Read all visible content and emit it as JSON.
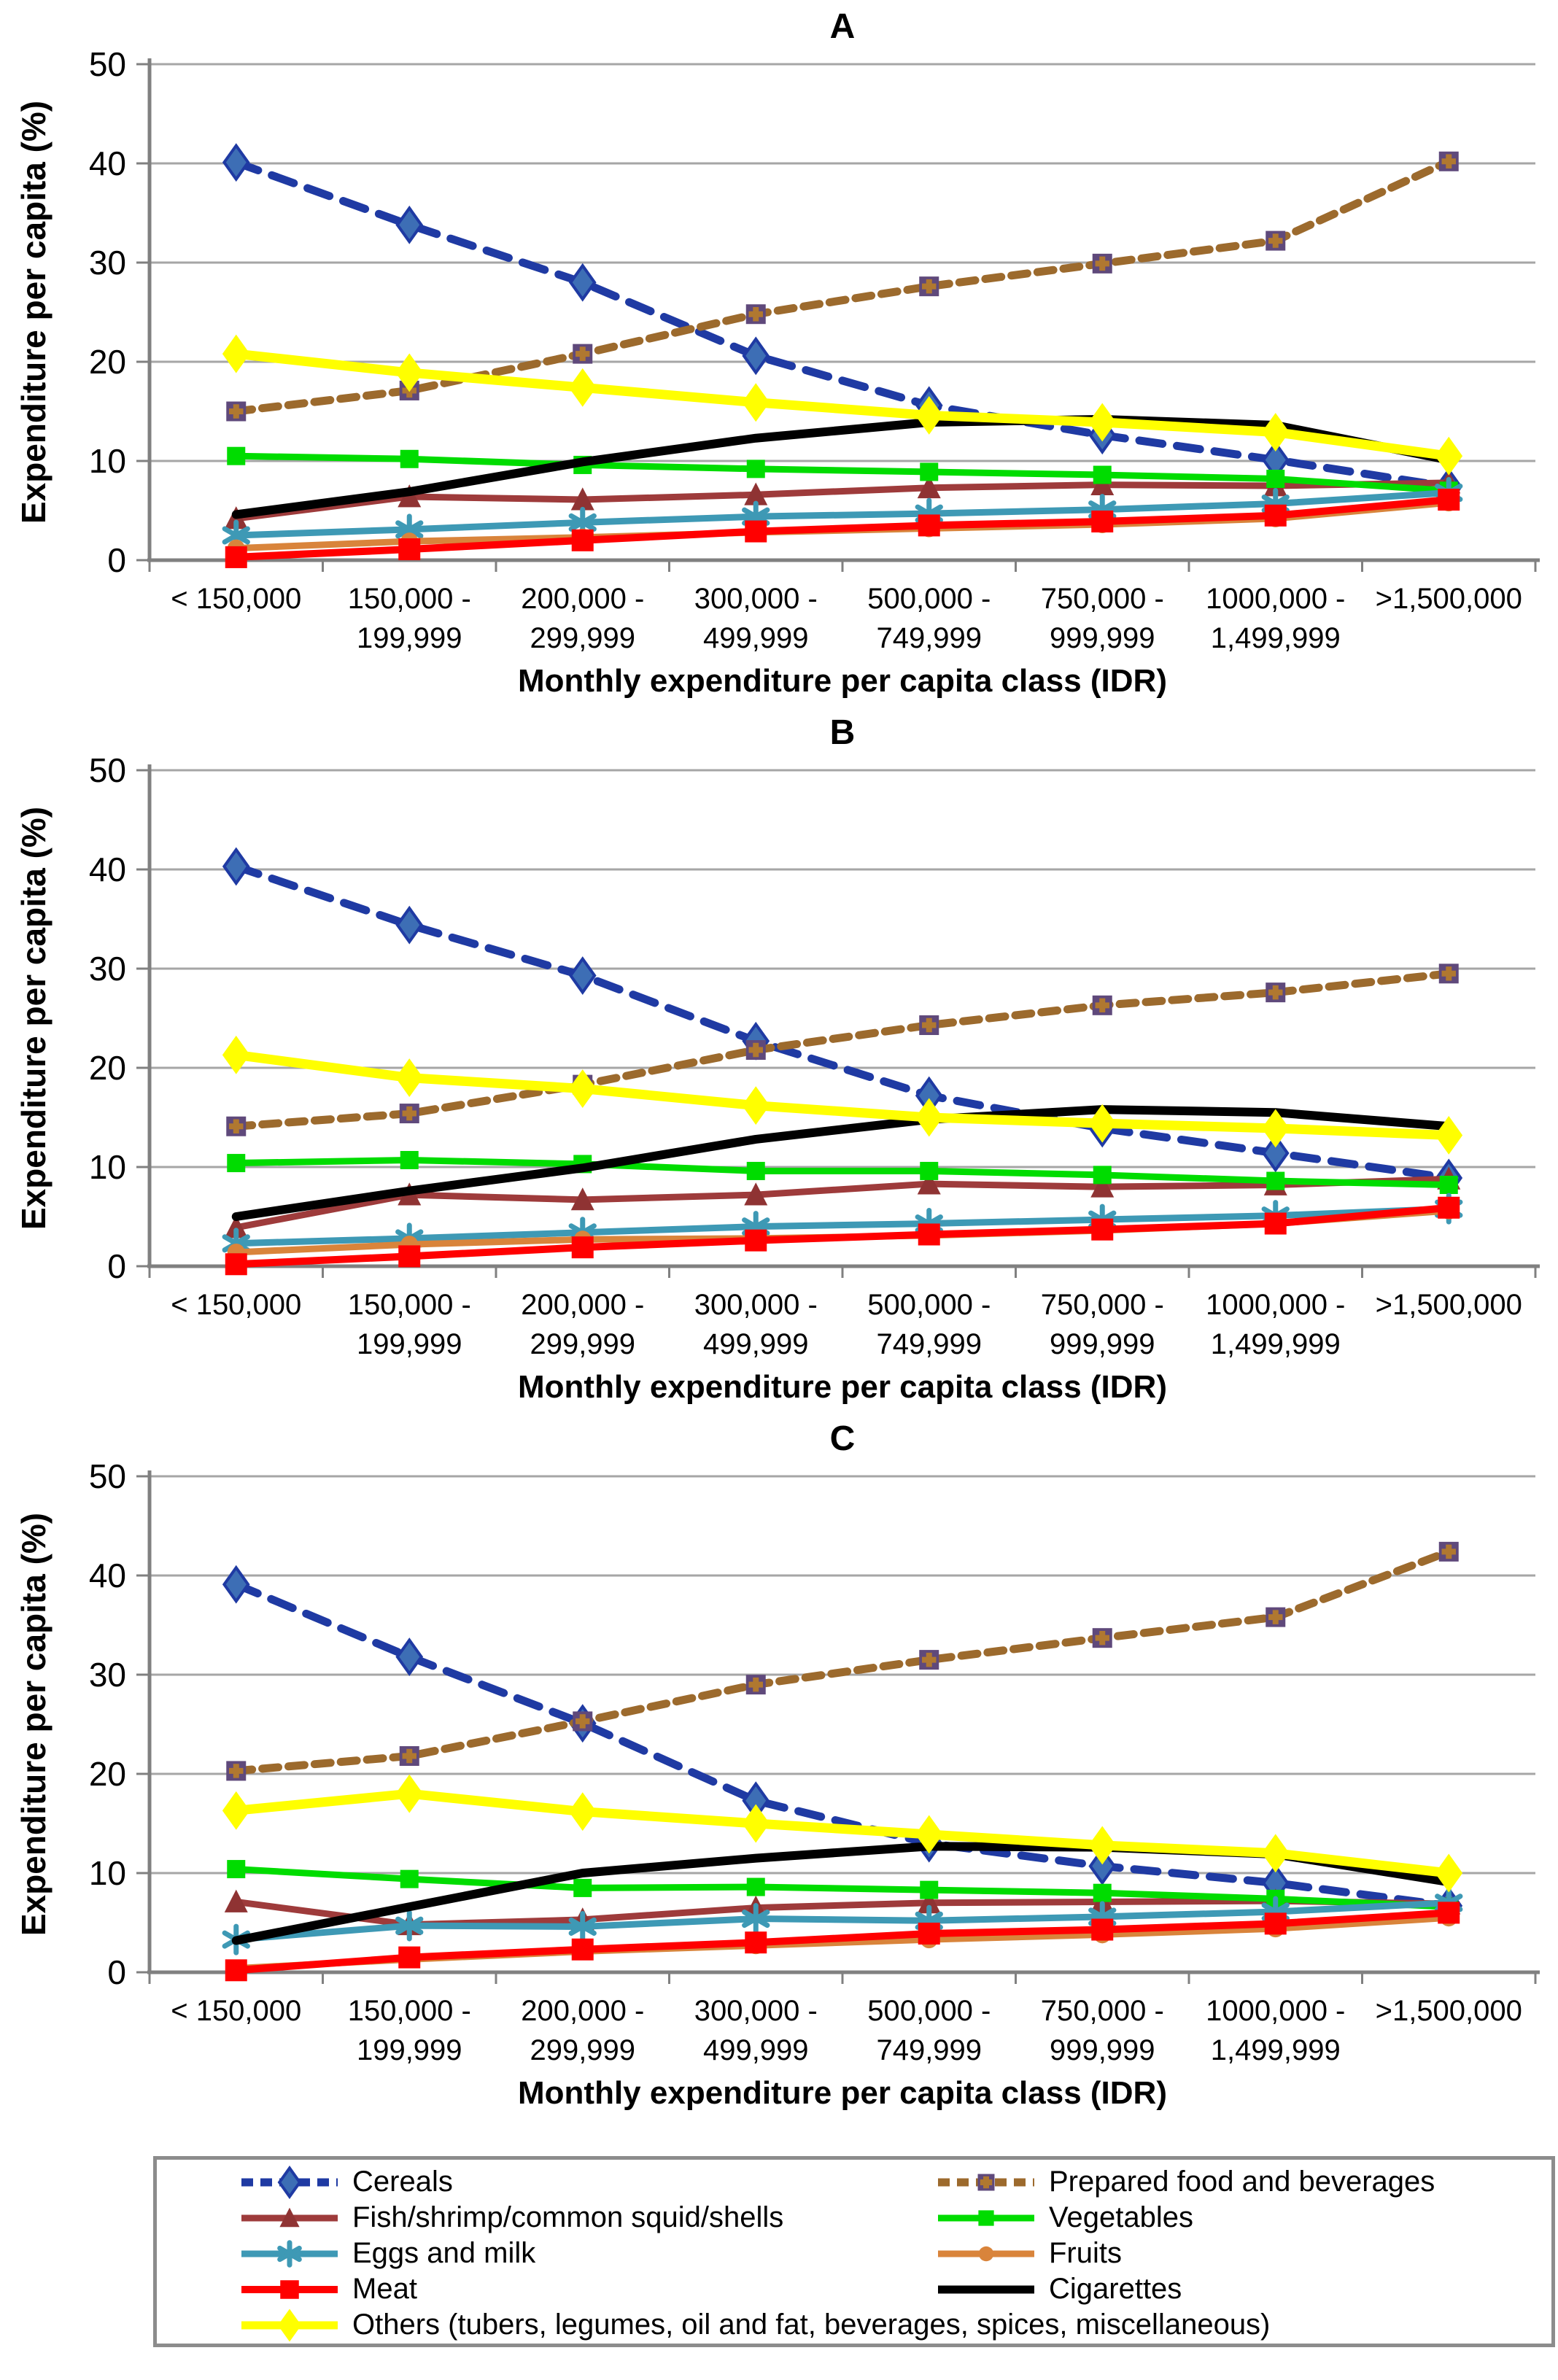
{
  "chart_data": [
    {
      "type": "line",
      "title": "A",
      "xlabel": "Monthly expenditure per capita class (IDR)",
      "ylabel": "Expenditure per capita (%)",
      "ylim": [
        0,
        50
      ],
      "yticks": [
        0,
        10,
        20,
        30,
        40,
        50
      ],
      "grid": true,
      "categories": [
        [
          "< 150,000"
        ],
        [
          "150,000 -",
          "199,999"
        ],
        [
          "200,000 -",
          "299,999"
        ],
        [
          "300,000 -",
          "499,999"
        ],
        [
          "500,000 -",
          "749,999"
        ],
        [
          "750,000 -",
          "999,999"
        ],
        [
          "1000,000 -",
          "1,499,999"
        ],
        [
          ">1,500,000"
        ]
      ],
      "series": [
        {
          "name": "Cereals",
          "values": [
            40.1,
            33.8,
            28.0,
            20.6,
            15.6,
            12.6,
            10.1,
            7.4
          ]
        },
        {
          "name": "Prepared food and beverages",
          "values": [
            15.0,
            17.1,
            20.8,
            24.8,
            27.6,
            29.9,
            32.2,
            40.2
          ]
        },
        {
          "name": "Fish/shrimp/common squid/shells",
          "values": [
            4.2,
            6.4,
            6.1,
            6.6,
            7.3,
            7.6,
            7.5,
            7.8
          ]
        },
        {
          "name": "Vegetables",
          "values": [
            10.5,
            10.2,
            9.6,
            9.2,
            8.9,
            8.6,
            8.2,
            7.0
          ]
        },
        {
          "name": "Eggs and milk",
          "values": [
            2.5,
            3.1,
            3.8,
            4.4,
            4.7,
            5.1,
            5.7,
            6.8
          ]
        },
        {
          "name": "Fruits",
          "values": [
            1.2,
            1.9,
            2.3,
            2.8,
            3.2,
            3.6,
            4.2,
            5.8
          ]
        },
        {
          "name": "Meat",
          "values": [
            0.3,
            1.1,
            2.0,
            2.9,
            3.5,
            3.9,
            4.5,
            6.1
          ]
        },
        {
          "name": "Cigarettes",
          "values": [
            4.6,
            6.9,
            9.9,
            12.3,
            13.9,
            14.2,
            13.6,
            10.1
          ]
        },
        {
          "name": "Others",
          "values": [
            20.8,
            18.9,
            17.4,
            15.9,
            14.6,
            13.9,
            12.9,
            10.5
          ]
        }
      ]
    },
    {
      "type": "line",
      "title": "B",
      "xlabel": "Monthly expenditure per capita class (IDR)",
      "ylabel": "Expenditure per capita (%)",
      "ylim": [
        0,
        50
      ],
      "yticks": [
        0,
        10,
        20,
        30,
        40,
        50
      ],
      "grid": true,
      "categories": [
        [
          "< 150,000"
        ],
        [
          "150,000 -",
          "199,999"
        ],
        [
          "200,000 -",
          "299,999"
        ],
        [
          "300,000 -",
          "499,999"
        ],
        [
          "500,000 -",
          "749,999"
        ],
        [
          "750,000 -",
          "999,999"
        ],
        [
          "1000,000 -",
          "1,499,999"
        ],
        [
          ">1,500,000"
        ]
      ],
      "series": [
        {
          "name": "Cereals",
          "values": [
            40.3,
            34.4,
            29.3,
            22.7,
            17.2,
            13.9,
            11.4,
            8.9
          ]
        },
        {
          "name": "Prepared food and beverages",
          "values": [
            14.1,
            15.4,
            18.3,
            21.8,
            24.3,
            26.3,
            27.6,
            29.5
          ]
        },
        {
          "name": "Fish/shrimp/common squid/shells",
          "values": [
            3.9,
            7.2,
            6.7,
            7.2,
            8.3,
            8.0,
            8.2,
            8.8
          ]
        },
        {
          "name": "Vegetables",
          "values": [
            10.4,
            10.7,
            10.3,
            9.6,
            9.6,
            9.2,
            8.6,
            8.2
          ]
        },
        {
          "name": "Eggs and milk",
          "values": [
            2.3,
            2.8,
            3.4,
            4.0,
            4.3,
            4.7,
            5.1,
            5.8
          ]
        },
        {
          "name": "Fruits",
          "values": [
            1.4,
            2.2,
            2.7,
            2.8,
            3.1,
            3.6,
            4.3,
            5.6
          ]
        },
        {
          "name": "Meat",
          "values": [
            0.2,
            1.0,
            1.9,
            2.6,
            3.2,
            3.7,
            4.3,
            5.9
          ]
        },
        {
          "name": "Cigarettes",
          "values": [
            5.0,
            7.6,
            9.9,
            12.8,
            14.8,
            15.8,
            15.5,
            14.1
          ]
        },
        {
          "name": "Others",
          "values": [
            21.3,
            19.0,
            17.9,
            16.2,
            15.0,
            14.4,
            13.9,
            13.2
          ]
        }
      ]
    },
    {
      "type": "line",
      "title": "C",
      "xlabel": "Monthly expenditure per capita class (IDR)",
      "ylabel": "Expenditure per capita (%)",
      "ylim": [
        0,
        50
      ],
      "yticks": [
        0,
        10,
        20,
        30,
        40,
        50
      ],
      "grid": true,
      "categories": [
        [
          "< 150,000"
        ],
        [
          "150,000 -",
          "199,999"
        ],
        [
          "200,000 -",
          "299,999"
        ],
        [
          "300,000 -",
          "499,999"
        ],
        [
          "500,000 -",
          "749,999"
        ],
        [
          "750,000 -",
          "999,999"
        ],
        [
          "1000,000 -",
          "1,499,999"
        ],
        [
          ">1,500,000"
        ]
      ],
      "series": [
        {
          "name": "Cereals",
          "values": [
            39.1,
            31.8,
            25.1,
            17.3,
            13.0,
            10.7,
            9.0,
            6.7
          ]
        },
        {
          "name": "Prepared food and beverages",
          "values": [
            20.3,
            21.8,
            25.3,
            29.0,
            31.5,
            33.7,
            35.8,
            42.4
          ]
        },
        {
          "name": "Fish/shrimp/common squid/shells",
          "values": [
            7.1,
            4.8,
            5.3,
            6.5,
            7.0,
            7.1,
            7.2,
            6.9
          ]
        },
        {
          "name": "Vegetables",
          "values": [
            10.4,
            9.4,
            8.5,
            8.6,
            8.3,
            8.0,
            7.4,
            6.6
          ]
        },
        {
          "name": "Eggs and milk",
          "values": [
            3.3,
            4.7,
            4.6,
            5.4,
            5.2,
            5.6,
            6.1,
            7.0
          ]
        },
        {
          "name": "Fruits",
          "values": [
            0.4,
            1.3,
            2.1,
            2.7,
            3.3,
            3.8,
            4.4,
            5.5
          ]
        },
        {
          "name": "Meat",
          "values": [
            0.2,
            1.5,
            2.3,
            3.0,
            3.9,
            4.3,
            4.9,
            6.0
          ]
        },
        {
          "name": "Cigarettes",
          "values": [
            3.2,
            6.6,
            10.0,
            11.5,
            12.7,
            12.6,
            11.9,
            9.1
          ]
        },
        {
          "name": "Others",
          "values": [
            16.3,
            18.0,
            16.2,
            15.0,
            13.9,
            12.8,
            12.0,
            10.0
          ]
        }
      ]
    }
  ],
  "series_styles": {
    "Cereals": {
      "color": "#1F3AA3",
      "width": 11,
      "dash": "32 20",
      "marker": "diamond",
      "marker_fill": "#3D6EB5",
      "marker_stroke": "#1F3AA3",
      "marker_size": 40
    },
    "Prepared food and beverages": {
      "color": "#9C6A2D",
      "width": 11,
      "dash": "22 14",
      "marker": "square-plus",
      "marker_fill": "#5F497B",
      "plus_color": "#B07830",
      "marker_size": 27
    },
    "Fish/shrimp/common squid/shells": {
      "color": "#9E3B3B",
      "width": 9,
      "marker": "triangle",
      "marker_fill": "#8F3333",
      "marker_size": 32
    },
    "Vegetables": {
      "color": "#00DC00",
      "width": 9,
      "marker": "square",
      "marker_fill": "#00DC00",
      "marker_size": 25
    },
    "Eggs and milk": {
      "color": "#3E99B5",
      "width": 9,
      "marker": "asterisk",
      "marker_fill": "#3E99B5",
      "marker_size": 36
    },
    "Fruits": {
      "color": "#D9843B",
      "width": 9,
      "marker": "circle",
      "marker_fill": "#D9843B",
      "marker_size": 24
    },
    "Meat": {
      "color": "#FF0000",
      "width": 10,
      "marker": "square",
      "marker_fill": "#FF0000",
      "marker_size": 30
    },
    "Cigarettes": {
      "color": "#000000",
      "width": 12,
      "marker": "none",
      "marker_size": 0
    },
    "Others": {
      "color": "#FFFF00",
      "width": 13,
      "marker": "diamond",
      "marker_fill": "#FFFF00",
      "marker_size": 46
    }
  },
  "legend": {
    "items": [
      {
        "label": "Cereals",
        "series": "Cereals"
      },
      {
        "label": "Prepared food and beverages",
        "series": "Prepared food and beverages"
      },
      {
        "label": "Fish/shrimp/common squid/shells",
        "series": "Fish/shrimp/common squid/shells"
      },
      {
        "label": "Vegetables",
        "series": "Vegetables"
      },
      {
        "label": "Eggs and milk",
        "series": "Eggs and milk"
      },
      {
        "label": "Fruits",
        "series": "Fruits"
      },
      {
        "label": "Meat",
        "series": "Meat"
      },
      {
        "label": "Cigarettes",
        "series": "Cigarettes"
      },
      {
        "label": "Others (tubers, legumes, oil and fat, beverages, spices, miscellaneous)",
        "series": "Others"
      }
    ]
  },
  "axis_colors": {
    "axis": "#808080",
    "gridline": "#A6A6A6"
  }
}
